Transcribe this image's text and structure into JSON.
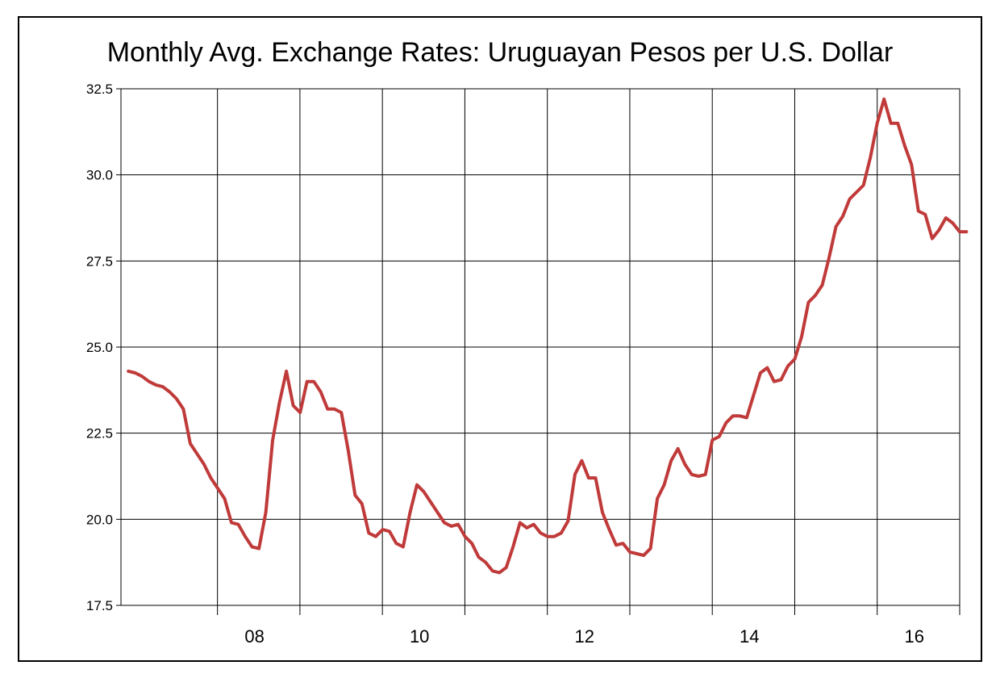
{
  "colors": {
    "line": "#c03a3a",
    "grid": "#000000",
    "background": "#ffffff"
  },
  "chart_data": {
    "type": "line",
    "title": "Monthly Avg. Exchange Rates: Uruguayan Pesos per U.S. Dollar",
    "xlabel": "",
    "ylabel": "",
    "ylim": [
      17.5,
      32.5
    ],
    "xlim": [
      2006.83,
      2017.0
    ],
    "grid": true,
    "legend": "none",
    "y_ticks": [
      17.5,
      20.0,
      22.5,
      25.0,
      27.5,
      30.0,
      32.5
    ],
    "y_tick_labels": [
      "17.5",
      "20.0",
      "22.5",
      "25.0",
      "27.5",
      "30.0",
      "32.5"
    ],
    "x_tick_labels": [
      {
        "year": 2008,
        "label": "08"
      },
      {
        "year": 2010,
        "label": "10"
      },
      {
        "year": 2012,
        "label": "12"
      },
      {
        "year": 2014,
        "label": "14"
      },
      {
        "year": 2016,
        "label": "16"
      }
    ],
    "x_gridlines": [
      2008,
      2009,
      2010,
      2011,
      2012,
      2013,
      2014,
      2015,
      2016,
      2017
    ],
    "series": [
      {
        "x_start": 2006.92,
        "step": 0.0833,
        "values": [
          24.3,
          24.25,
          24.15,
          24.0,
          23.9,
          23.85,
          23.7,
          23.5,
          23.2,
          22.2,
          21.9,
          21.6,
          21.2,
          20.9,
          20.6,
          19.9,
          19.85,
          19.5,
          19.2,
          19.15,
          20.2,
          22.3,
          23.4,
          24.3,
          23.3,
          23.1,
          24.0,
          24.0,
          23.7,
          23.2,
          23.2,
          23.1,
          22.0,
          20.7,
          20.45,
          19.6,
          19.5,
          19.7,
          19.65,
          19.3,
          19.2,
          20.2,
          21.0,
          20.8,
          20.5,
          20.2,
          19.9,
          19.8,
          19.85,
          19.5,
          19.3,
          18.9,
          18.75,
          18.5,
          18.45,
          18.6,
          19.2,
          19.9,
          19.75,
          19.85,
          19.6,
          19.5,
          19.5,
          19.6,
          19.95,
          21.3,
          21.7,
          21.2,
          21.2,
          20.2,
          19.7,
          19.25,
          19.3,
          19.05,
          19.0,
          18.95,
          19.15,
          20.6,
          21.0,
          21.7,
          22.05,
          21.6,
          21.3,
          21.25,
          21.3,
          22.3,
          22.4,
          22.8,
          23.0,
          23.0,
          22.95,
          23.6,
          24.25,
          24.4,
          24.0,
          24.05,
          24.45,
          24.65,
          25.3,
          26.3,
          26.5,
          26.8,
          27.6,
          28.5,
          28.8,
          29.3,
          29.5,
          29.7,
          30.5,
          31.5,
          32.2,
          31.5,
          31.5,
          30.85,
          30.3,
          28.95,
          28.85,
          28.15,
          28.4,
          28.75,
          28.6,
          28.35,
          28.35
        ]
      }
    ]
  }
}
